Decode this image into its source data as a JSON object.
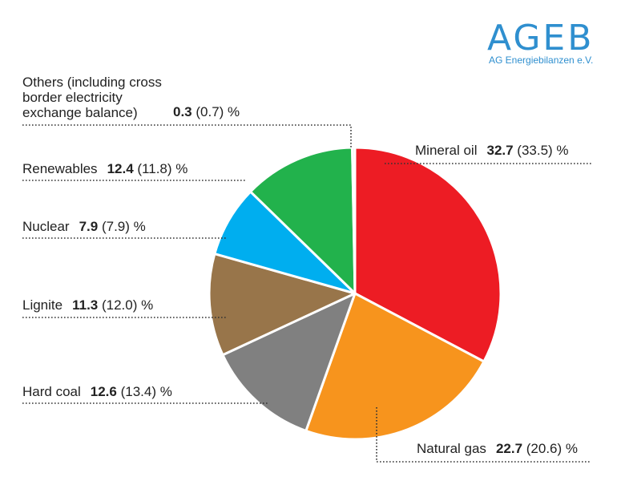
{
  "logo": {
    "name": "AGEB",
    "subtitle": "AG Energiebilanzen e.V."
  },
  "chart_data": {
    "type": "pie",
    "unit": "%",
    "grid": false,
    "legend": "none",
    "slices": [
      {
        "label": "Mineral oil",
        "value": 32.7,
        "previous": "33.5",
        "color": "#ed1c24"
      },
      {
        "label": "Natural gas",
        "value": 22.7,
        "previous": "20.6",
        "color": "#f7941d"
      },
      {
        "label": "Hard coal",
        "value": 12.6,
        "previous": "13.4",
        "color": "#808080"
      },
      {
        "label": "Lignite",
        "value": 11.3,
        "previous": "12.0",
        "color": "#98754a"
      },
      {
        "label": "Nuclear",
        "value": 7.9,
        "previous": "7.9",
        "color": "#00aeef"
      },
      {
        "label": "Renewables",
        "value": 12.4,
        "previous": "11.8",
        "color": "#22b24c"
      },
      {
        "label": "Others (including cross border electricity exchange balance)",
        "value": 0.3,
        "previous": "0.7",
        "color": "#d9d9d9"
      }
    ],
    "label_lines": {
      "Others (including cross border electricity exchange balance)": [
        "Others (including cross",
        "border electricity",
        "exchange balance)"
      ]
    }
  }
}
